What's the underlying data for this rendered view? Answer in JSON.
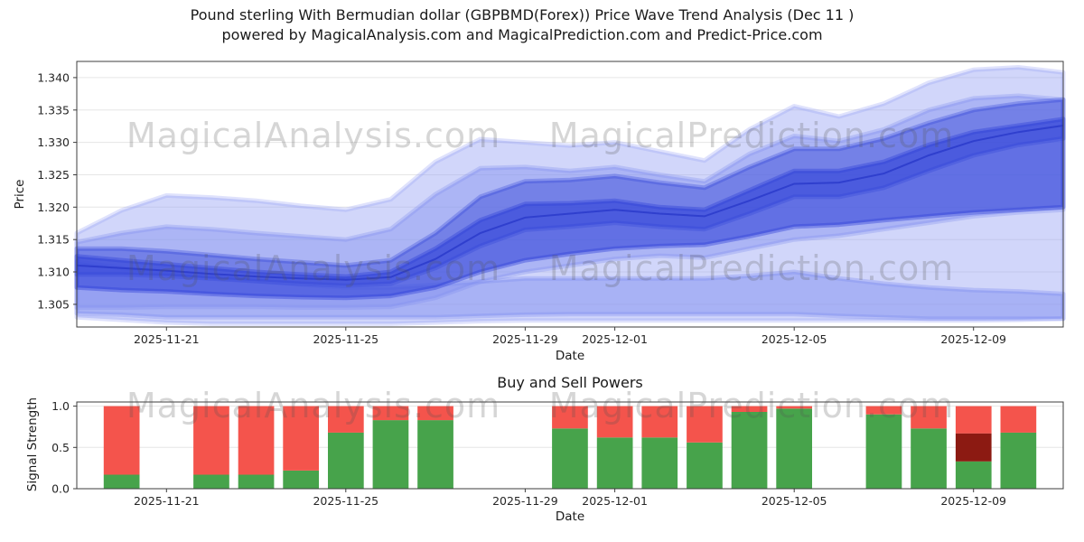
{
  "title": {
    "line1": "Pound sterling With Bermudian dollar (GBPBMD(Forex)) Price Wave Trend Analysis (Dec 11 )",
    "line2": "powered by MagicalAnalysis.com and MagicalPrediction.com and Predict-Price.com"
  },
  "watermark_texts": [
    "MagicalAnalysis.com",
    "MagicalPrediction.com"
  ],
  "chart_data": [
    {
      "type": "area",
      "name": "price-wave-trend",
      "xlabel": "Date",
      "ylabel": "Price",
      "x_start": "2025-11-19",
      "x_end": "2025-12-11",
      "ylim": [
        1.3015,
        1.3425
      ],
      "yticks": [
        1.305,
        1.31,
        1.315,
        1.32,
        1.325,
        1.33,
        1.335,
        1.34
      ],
      "xticks": [
        "2025-11-21",
        "2025-11-25",
        "2025-11-29",
        "2025-12-01",
        "2025-12-05",
        "2025-12-09"
      ],
      "x_dates": [
        "2025-11-19",
        "2025-11-20",
        "2025-11-21",
        "2025-11-22",
        "2025-11-23",
        "2025-11-24",
        "2025-11-25",
        "2025-11-26",
        "2025-11-27",
        "2025-11-28",
        "2025-11-29",
        "2025-11-30",
        "2025-12-01",
        "2025-12-02",
        "2025-12-03",
        "2025-12-04",
        "2025-12-05",
        "2025-12-06",
        "2025-12-07",
        "2025-12-08",
        "2025-12-09",
        "2025-12-10",
        "2025-12-11"
      ],
      "bands": [
        {
          "name": "outer-envelope",
          "color": "#98a4f4",
          "opacity": 0.45,
          "low": [
            1.303,
            1.3026,
            1.3022,
            1.302,
            1.302,
            1.302,
            1.302,
            1.302,
            1.3022,
            1.3024,
            1.3025,
            1.3025,
            1.3025,
            1.3025,
            1.3025,
            1.3025,
            1.3025,
            1.3025,
            1.3025,
            1.3025,
            1.3025,
            1.3026,
            1.3028
          ],
          "high": [
            1.316,
            1.3195,
            1.3218,
            1.3215,
            1.321,
            1.3202,
            1.3196,
            1.3212,
            1.327,
            1.3305,
            1.33,
            1.3295,
            1.33,
            1.3286,
            1.3272,
            1.332,
            1.3356,
            1.334,
            1.336,
            1.3392,
            1.3412,
            1.3416,
            1.3408
          ]
        },
        {
          "name": "upper-light",
          "color": "#7f8df0",
          "opacity": 0.45,
          "low": [
            1.3045,
            1.3045,
            1.3046,
            1.3046,
            1.3046,
            1.3045,
            1.3045,
            1.3046,
            1.306,
            1.3085,
            1.31,
            1.311,
            1.312,
            1.3125,
            1.3122,
            1.3136,
            1.315,
            1.3156,
            1.3166,
            1.3176,
            1.3186,
            1.3192,
            1.3196
          ],
          "high": [
            1.3146,
            1.316,
            1.317,
            1.3166,
            1.316,
            1.3155,
            1.315,
            1.3166,
            1.322,
            1.326,
            1.3262,
            1.3256,
            1.3262,
            1.325,
            1.324,
            1.3282,
            1.331,
            1.3302,
            1.332,
            1.335,
            1.3368,
            1.3372,
            1.3366
          ]
        },
        {
          "name": "lower-tube",
          "color": "#7f8df0",
          "opacity": 0.5,
          "low": [
            1.3036,
            1.3034,
            1.303,
            1.303,
            1.303,
            1.303,
            1.303,
            1.303,
            1.303,
            1.3032,
            1.3034,
            1.3035,
            1.3035,
            1.3035,
            1.3035,
            1.3035,
            1.3035,
            1.3032,
            1.303,
            1.3028,
            1.3028,
            1.3028,
            1.3028
          ],
          "high": [
            1.3116,
            1.3106,
            1.31,
            1.3092,
            1.3086,
            1.308,
            1.3076,
            1.3076,
            1.308,
            1.3085,
            1.309,
            1.309,
            1.309,
            1.309,
            1.309,
            1.3094,
            1.31,
            1.309,
            1.3082,
            1.3076,
            1.3072,
            1.307,
            1.3066
          ]
        },
        {
          "name": "core-dark",
          "color": "#3143d8",
          "opacity": 0.6,
          "low": [
            1.3076,
            1.3072,
            1.307,
            1.3066,
            1.3063,
            1.3061,
            1.306,
            1.3063,
            1.3076,
            1.31,
            1.3118,
            1.3128,
            1.3136,
            1.314,
            1.3142,
            1.3155,
            1.317,
            1.3173,
            1.318,
            1.3186,
            1.3192,
            1.3196,
            1.32
          ],
          "high": [
            1.3124,
            1.3118,
            1.3112,
            1.3106,
            1.31,
            1.3096,
            1.3093,
            1.31,
            1.3136,
            1.318,
            1.3205,
            1.3206,
            1.321,
            1.32,
            1.3196,
            1.3226,
            1.3256,
            1.3256,
            1.327,
            1.3296,
            1.3316,
            1.3326,
            1.3336
          ]
        },
        {
          "name": "upper-dark",
          "color": "#3143d8",
          "opacity": 0.45,
          "low": [
            1.3096,
            1.3096,
            1.3094,
            1.309,
            1.3086,
            1.3082,
            1.3079,
            1.3082,
            1.3106,
            1.314,
            1.3165,
            1.317,
            1.3176,
            1.317,
            1.3166,
            1.319,
            1.3216,
            1.3216,
            1.323,
            1.3256,
            1.328,
            1.3296,
            1.3306
          ],
          "high": [
            1.3136,
            1.3136,
            1.3132,
            1.3126,
            1.312,
            1.3115,
            1.311,
            1.3118,
            1.316,
            1.3216,
            1.324,
            1.3242,
            1.3248,
            1.3238,
            1.323,
            1.3262,
            1.329,
            1.329,
            1.3306,
            1.333,
            1.335,
            1.336,
            1.3366
          ]
        }
      ],
      "trend_line": {
        "color": "#2c3ccc",
        "values": [
          1.311,
          1.3106,
          1.3102,
          1.3097,
          1.3093,
          1.309,
          1.3088,
          1.3092,
          1.312,
          1.316,
          1.3184,
          1.319,
          1.3196,
          1.319,
          1.3186,
          1.321,
          1.3236,
          1.3238,
          1.3252,
          1.328,
          1.3302,
          1.3316,
          1.3326
        ]
      }
    },
    {
      "type": "bar",
      "name": "buy-sell-powers",
      "title": "Buy and Sell Powers",
      "xlabel": "Date",
      "ylabel": "Signal Strength",
      "x_start": "2025-11-19",
      "x_end": "2025-12-11",
      "ylim": [
        0,
        1.05
      ],
      "yticks": [
        0.0,
        0.5,
        1.0
      ],
      "xticks": [
        "2025-11-21",
        "2025-11-25",
        "2025-11-29",
        "2025-12-01",
        "2025-12-05",
        "2025-12-09"
      ],
      "bar_width_days": 0.8,
      "colors": {
        "buy": "#47a34b",
        "sell": "#f4544c",
        "sell_dark": "#8c1a12"
      },
      "bars": [
        {
          "date": "2025-11-20",
          "buy": 0.17,
          "sell": 0.83
        },
        {
          "date": "2025-11-22",
          "buy": 0.17,
          "sell": 0.83
        },
        {
          "date": "2025-11-23",
          "buy": 0.17,
          "sell": 0.83
        },
        {
          "date": "2025-11-24",
          "buy": 0.22,
          "sell": 0.78
        },
        {
          "date": "2025-11-25",
          "buy": 0.68,
          "sell": 0.32
        },
        {
          "date": "2025-11-26",
          "buy": 0.83,
          "sell": 0.17
        },
        {
          "date": "2025-11-27",
          "buy": 0.83,
          "sell": 0.17
        },
        {
          "date": "2025-11-30",
          "buy": 0.73,
          "sell": 0.27
        },
        {
          "date": "2025-12-01",
          "buy": 0.62,
          "sell": 0.38
        },
        {
          "date": "2025-12-02",
          "buy": 0.62,
          "sell": 0.38
        },
        {
          "date": "2025-12-03",
          "buy": 0.56,
          "sell": 0.44
        },
        {
          "date": "2025-12-04",
          "buy": 0.93,
          "sell": 0.07
        },
        {
          "date": "2025-12-05",
          "buy": 0.97,
          "sell": 0.03
        },
        {
          "date": "2025-12-07",
          "buy": 0.9,
          "sell": 0.1
        },
        {
          "date": "2025-12-08",
          "buy": 0.73,
          "sell": 0.27
        },
        {
          "date": "2025-12-09",
          "buy": 0.33,
          "sell_dark": 0.34,
          "sell": 0.33
        },
        {
          "date": "2025-12-10",
          "buy": 0.68,
          "sell": 0.32
        }
      ]
    }
  ]
}
